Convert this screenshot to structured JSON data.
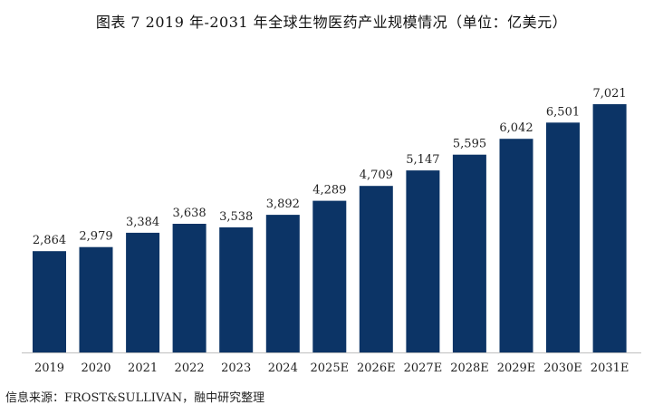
{
  "chart_data": {
    "type": "bar",
    "title": "图表 7 2019 年-2031 年全球生物医药产业规模情况（单位：亿美元）",
    "categories": [
      "2019",
      "2020",
      "2021",
      "2022",
      "2023",
      "2024",
      "2025E",
      "2026E",
      "2027E",
      "2028E",
      "2029E",
      "2030E",
      "2031E"
    ],
    "values": [
      2864,
      2979,
      3384,
      3638,
      3538,
      3892,
      4289,
      4709,
      5147,
      5595,
      6042,
      6501,
      7021
    ],
    "value_labels": [
      "2,864",
      "2,979",
      "3,384",
      "3,638",
      "3,538",
      "3,892",
      "4,289",
      "4,709",
      "5,147",
      "5,595",
      "6,042",
      "6,501",
      "7,021"
    ],
    "xlabel": "",
    "ylabel": "",
    "ylim": [
      0,
      7021
    ],
    "grid": false,
    "legend": "none",
    "bar_color": "#0c3466",
    "source": "信息来源：FROST&SULLIVAN，融中研究整理"
  }
}
